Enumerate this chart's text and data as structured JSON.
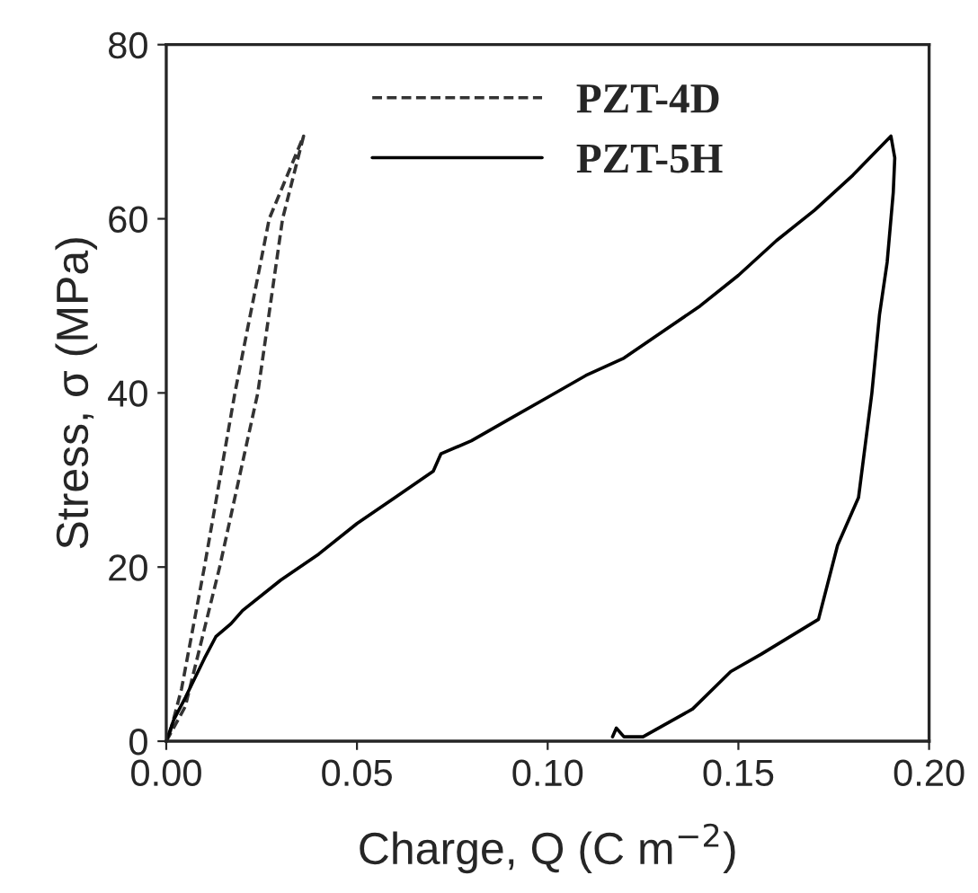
{
  "chart_data": {
    "type": "line",
    "xlabel": "Charge, Q (C m$^{−2}$)",
    "ylabel": "Stress, σ (MPa)",
    "xlim": [
      0,
      0.2
    ],
    "ylim": [
      0,
      80
    ],
    "xticks": [
      {
        "value": 0,
        "label": "0.00"
      },
      {
        "value": 0.05,
        "label": "0.05"
      },
      {
        "value": 0.1,
        "label": "0.10"
      },
      {
        "value": 0.15,
        "label": "0.15"
      },
      {
        "value": 0.2,
        "label": "0.20"
      }
    ],
    "yticks": [
      0,
      20,
      40,
      60,
      80
    ],
    "legend": "top",
    "grid": false,
    "series": [
      {
        "name": "PZT-4D",
        "color": "#333333",
        "line_style": "dashed",
        "x": [
          0,
          0.005,
          0.014,
          0.024,
          0.0305,
          0.036,
          0.027,
          0.018,
          0.01,
          0.004,
          0.001
        ],
        "values": [
          0,
          4,
          20,
          40,
          60,
          69.5,
          60,
          40,
          20,
          6,
          1
        ]
      },
      {
        "name": "PZT-5H",
        "color": "#000000",
        "line_style": "solid",
        "x": [
          0,
          0.002,
          0.005,
          0.01,
          0.013,
          0.017,
          0.02,
          0.03,
          0.04,
          0.05,
          0.06,
          0.07,
          0.072,
          0.08,
          0.09,
          0.1,
          0.11,
          0.12,
          0.13,
          0.14,
          0.15,
          0.16,
          0.17,
          0.18,
          0.19,
          0.191,
          0.1906,
          0.189,
          0.187,
          0.185,
          0.1815,
          0.176,
          0.171,
          0.156,
          0.148,
          0.138,
          0.125,
          0.12,
          0.118,
          0.117
        ],
        "values": [
          0,
          2.5,
          5,
          9.5,
          12,
          13.5,
          15,
          18.5,
          21.5,
          25,
          28,
          31,
          33,
          34.5,
          37,
          39.5,
          42,
          44,
          47,
          50,
          53.5,
          57.5,
          61,
          65,
          69.5,
          67,
          63,
          55,
          49,
          40,
          28,
          22.5,
          14,
          10,
          8,
          3.7,
          0.5,
          0.5,
          1.5,
          0.5
        ]
      }
    ]
  }
}
